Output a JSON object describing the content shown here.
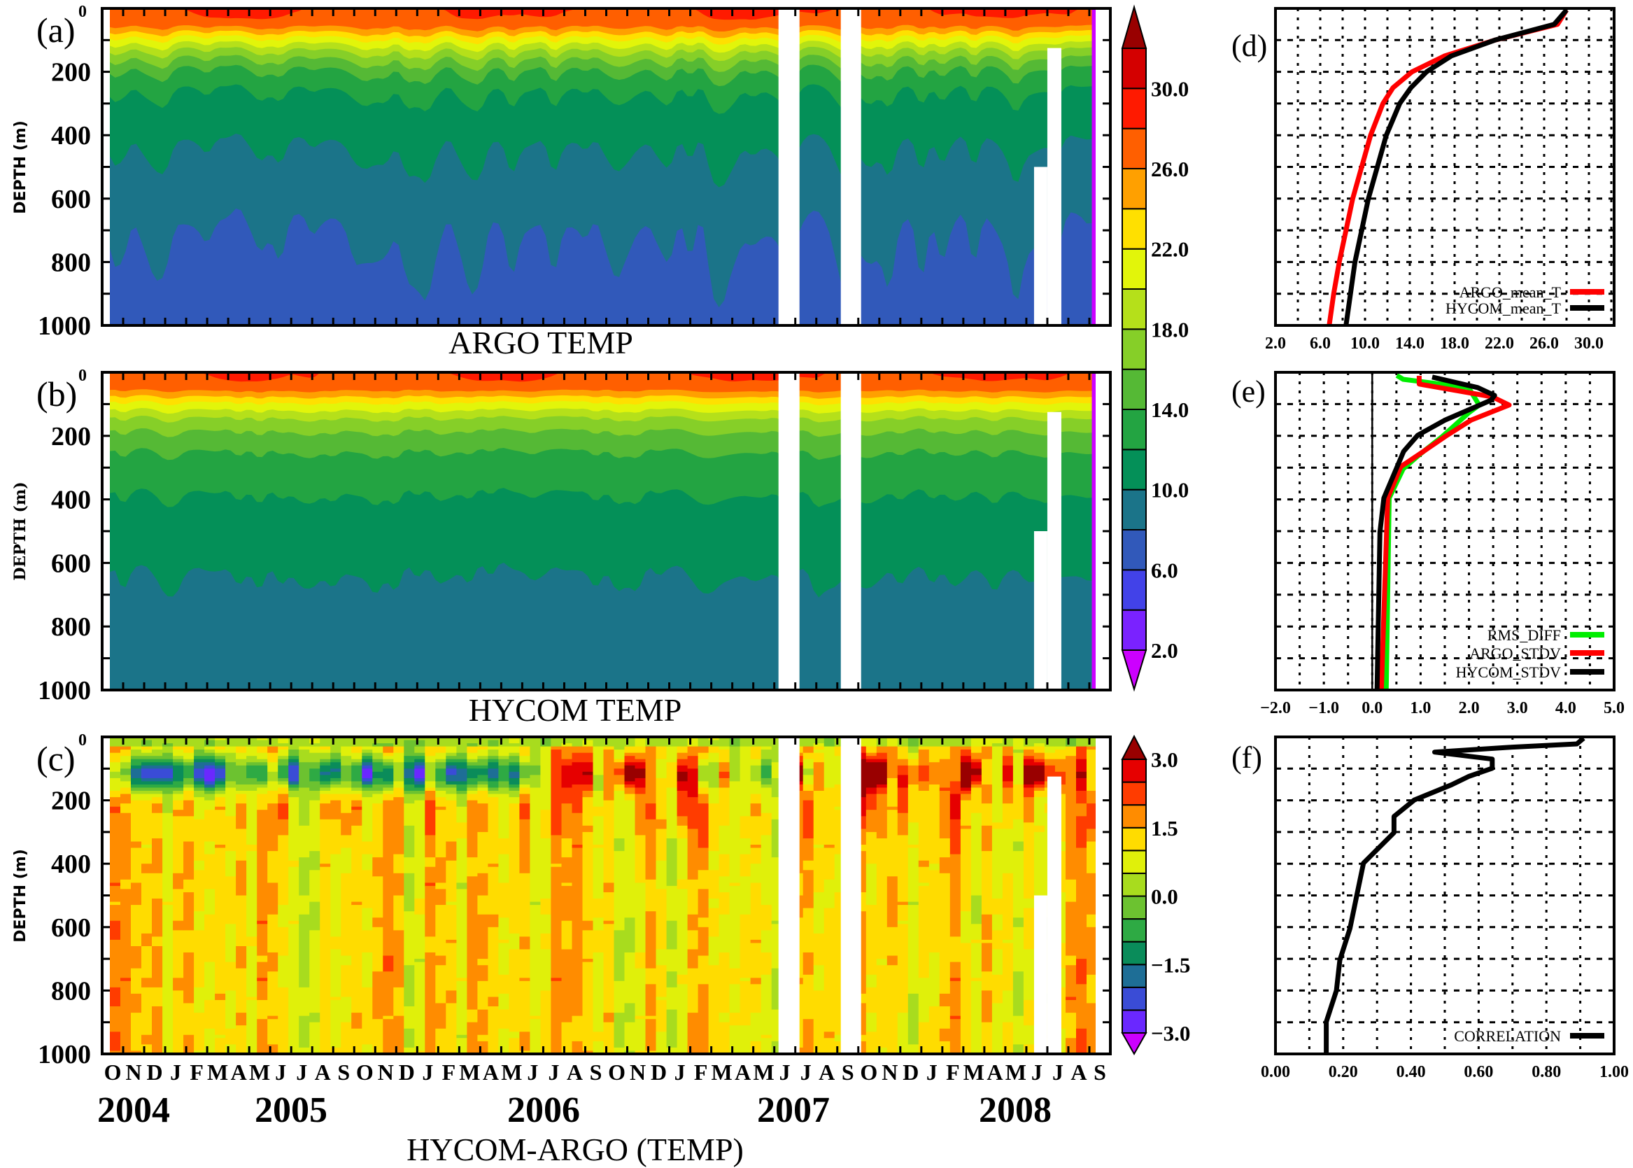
{
  "panel_labels": [
    "(a)",
    "(b)",
    "(c)",
    "(d)",
    "(e)",
    "(f)"
  ],
  "months": [
    "O",
    "N",
    "D",
    "J",
    "F",
    "M",
    "A",
    "M",
    "J",
    "J",
    "A",
    "S",
    "O",
    "N",
    "D",
    "J",
    "F",
    "M",
    "A",
    "M",
    "J",
    "J",
    "A",
    "S",
    "O",
    "N",
    "D",
    "J",
    "F",
    "M",
    "A",
    "M",
    "J",
    "J",
    "A",
    "S",
    "O",
    "N",
    "D",
    "J",
    "F",
    "M",
    "A",
    "M",
    "J",
    "J",
    "A",
    "S"
  ],
  "years": [
    "2004",
    "2005",
    "2006",
    "2007",
    "2008"
  ],
  "colorbars": [
    {
      "levels": [
        2,
        4,
        6,
        8,
        10,
        12,
        14,
        16,
        18,
        20,
        22,
        24,
        26,
        28,
        30,
        32
      ],
      "labels": [
        {
          "value": 2,
          "text": "2.0"
        },
        {
          "value": 6,
          "text": "6.0"
        },
        {
          "value": 10,
          "text": "10.0"
        },
        {
          "value": 14,
          "text": "14.0"
        },
        {
          "value": 18,
          "text": "18.0"
        },
        {
          "value": 22,
          "text": "22.0"
        },
        {
          "value": 26,
          "text": "26.0"
        },
        {
          "value": 30,
          "text": "30.0"
        }
      ],
      "colors_low_to_high": [
        "#cc00ff",
        "#7a22ff",
        "#4242e8",
        "#3159ba",
        "#1b7489",
        "#049058",
        "#23a442",
        "#55b935",
        "#86cf28",
        "#b5e01a",
        "#e2f50a",
        "#ffe000",
        "#ffa000",
        "#ff5f00",
        "#ff1a00",
        "#d40000",
        "#990000"
      ]
    },
    {
      "levels": [
        -3,
        -2.5,
        -2,
        -1.5,
        -1,
        -0.5,
        0,
        0.5,
        1,
        1.5,
        2,
        2.5,
        3
      ],
      "labels": [
        {
          "value": -3,
          "text": "−3.0"
        },
        {
          "value": -1.5,
          "text": "−1.5"
        },
        {
          "value": 0,
          "text": "0.0"
        },
        {
          "value": 1.5,
          "text": "1.5"
        },
        {
          "value": 3,
          "text": "3.0"
        }
      ],
      "colors_low_to_high": [
        "#cc00ff",
        "#6a28ff",
        "#3a4cd6",
        "#1e6e96",
        "#0a8c5a",
        "#2eaa44",
        "#6cc230",
        "#a8dc1e",
        "#e0f00a",
        "#ffdc00",
        "#ff8c00",
        "#ff3c00",
        "#e60000",
        "#990000"
      ]
    }
  ],
  "chart_data": [
    {
      "panel": "(a)",
      "type": "heatmap",
      "title": "ARGO TEMP",
      "ylabel": "DEPTH (m)",
      "ylim": [
        1000,
        0
      ],
      "yticks": [
        "0",
        "200",
        "400",
        "600",
        "800",
        "1000"
      ],
      "xlim": [
        "2004-10-01",
        "2008-10-01"
      ],
      "data_range": [
        "2004-10-12",
        "2008-09-10"
      ],
      "colorbar": 0,
      "missing": [
        {
          "start": "2007-06-07",
          "end": "2007-07-07",
          "depth_from": 0
        },
        {
          "start": "2007-09-06",
          "end": "2007-10-05",
          "depth_from": 0
        },
        {
          "start": "2008-06-12",
          "end": "2008-07-01",
          "depth_from": 500
        },
        {
          "start": "2008-07-01",
          "end": "2008-07-21",
          "depth_from": 125
        }
      ]
    },
    {
      "panel": "(b)",
      "type": "heatmap",
      "title": "HYCOM TEMP",
      "ylabel": "DEPTH (m)",
      "ylim": [
        1000,
        0
      ],
      "yticks": [
        "0",
        "200",
        "400",
        "600",
        "800",
        "1000"
      ],
      "xlim": [
        "2004-10-01",
        "2008-10-01"
      ],
      "data_range": [
        "2004-10-12",
        "2008-09-10"
      ],
      "colorbar": 0,
      "missing": [
        {
          "start": "2007-06-07",
          "end": "2007-07-07",
          "depth_from": 0
        },
        {
          "start": "2007-09-06",
          "end": "2007-10-05",
          "depth_from": 0
        },
        {
          "start": "2008-06-12",
          "end": "2008-07-01",
          "depth_from": 500
        },
        {
          "start": "2008-07-01",
          "end": "2008-07-21",
          "depth_from": 125
        }
      ]
    },
    {
      "panel": "(c)",
      "type": "heatmap",
      "title": "HYCOM-ARGO (TEMP)",
      "ylabel": "DEPTH (m)",
      "ylim": [
        1000,
        0
      ],
      "yticks": [
        "0",
        "200",
        "400",
        "600",
        "800",
        "1000"
      ],
      "xlim": [
        "2004-10-01",
        "2008-10-01"
      ],
      "data_range": [
        "2004-10-12",
        "2008-09-10"
      ],
      "colorbar": 1,
      "missing": [
        {
          "start": "2007-06-07",
          "end": "2007-07-07",
          "depth_from": 0
        },
        {
          "start": "2007-09-06",
          "end": "2007-10-05",
          "depth_from": 0
        },
        {
          "start": "2008-06-12",
          "end": "2008-07-01",
          "depth_from": 500
        },
        {
          "start": "2008-07-01",
          "end": "2008-07-21",
          "depth_from": 125
        }
      ]
    },
    {
      "panel": "(d)",
      "type": "line",
      "xlim": [
        2,
        32.25
      ],
      "ylim": [
        1000,
        0
      ],
      "xticks": [
        "2.0",
        "6.0",
        "10.0",
        "14.0",
        "18.0",
        "22.0",
        "26.0",
        "30.0"
      ],
      "xtick_values": [
        2,
        6,
        10,
        14,
        18,
        22,
        26,
        30
      ],
      "grid": true,
      "grid_x_step": 2,
      "grid_y_step": 100,
      "legend": "bottom-right",
      "series": [
        {
          "name": "ARGO_mean_T",
          "color": "#ff0000",
          "points": [
            [
              28.0,
              5
            ],
            [
              27.2,
              50
            ],
            [
              21.6,
              100
            ],
            [
              17.1,
              150
            ],
            [
              14.2,
              200
            ],
            [
              12.5,
              250
            ],
            [
              11.6,
              300
            ],
            [
              10.5,
              400
            ],
            [
              9.7,
              500
            ],
            [
              8.9,
              600
            ],
            [
              8.3,
              700
            ],
            [
              7.7,
              800
            ],
            [
              7.2,
              900
            ],
            [
              6.8,
              1000
            ]
          ]
        },
        {
          "name": "HYCOM_mean_T",
          "color": "#000000",
          "points": [
            [
              28.0,
              5
            ],
            [
              26.9,
              50
            ],
            [
              21.6,
              100
            ],
            [
              17.7,
              150
            ],
            [
              15.5,
              200
            ],
            [
              14.1,
              250
            ],
            [
              13.1,
              300
            ],
            [
              11.9,
              400
            ],
            [
              11.1,
              500
            ],
            [
              10.3,
              600
            ],
            [
              9.7,
              700
            ],
            [
              9.1,
              800
            ],
            [
              8.7,
              900
            ],
            [
              8.3,
              1000
            ]
          ]
        }
      ]
    },
    {
      "panel": "(e)",
      "type": "line",
      "xlim": [
        -2,
        5
      ],
      "ylim": [
        1000,
        0
      ],
      "xticks": [
        "−2.0",
        "−1.0",
        "0.0",
        "1.0",
        "2.0",
        "3.0",
        "4.0",
        "5.0"
      ],
      "xtick_values": [
        -2,
        -1,
        0,
        1,
        2,
        3,
        4,
        5
      ],
      "grid": true,
      "grid_x_step": 0.5,
      "grid_y_step": 100,
      "zero_line": true,
      "legend": "bottom-right",
      "series": [
        {
          "name": "RMS_DIFF",
          "color": "#00ee00",
          "points": [
            [
              0.51,
              10
            ],
            [
              0.64,
              22
            ],
            [
              1.99,
              48
            ],
            [
              2.21,
              103
            ],
            [
              1.99,
              128
            ],
            [
              1.45,
              202
            ],
            [
              0.97,
              260
            ],
            [
              0.64,
              304
            ],
            [
              0.35,
              396
            ],
            [
              0.29,
              998
            ]
          ]
        },
        {
          "name": "ARGO_STDV",
          "color": "#ff0000",
          "points": [
            [
              0.97,
              11
            ],
            [
              0.97,
              37
            ],
            [
              2.48,
              77
            ],
            [
              2.83,
              103
            ],
            [
              2.05,
              150
            ],
            [
              1.51,
              202
            ],
            [
              1.02,
              253
            ],
            [
              0.59,
              297
            ],
            [
              0.32,
              396
            ],
            [
              0.19,
              998
            ]
          ]
        },
        {
          "name": "HYCOM_STDV",
          "color": "#000000",
          "points": [
            [
              1.24,
              15
            ],
            [
              2.18,
              48
            ],
            [
              2.53,
              73
            ],
            [
              2.45,
              88
            ],
            [
              1.51,
              150
            ],
            [
              0.94,
              198
            ],
            [
              0.65,
              249
            ],
            [
              0.24,
              396
            ],
            [
              0.16,
              503
            ],
            [
              0.1,
              998
            ]
          ]
        }
      ]
    },
    {
      "panel": "(f)",
      "type": "line",
      "xlim": [
        0,
        1
      ],
      "ylim": [
        1000,
        0
      ],
      "xticks": [
        "0.00",
        "0.20",
        "0.40",
        "0.60",
        "0.80",
        "1.00"
      ],
      "xtick_values": [
        0,
        0.2,
        0.4,
        0.6,
        0.8,
        1.0
      ],
      "grid": true,
      "grid_x_step": 0.1,
      "grid_y_step": 100,
      "legend": "bottom-right",
      "series": [
        {
          "name": "CORRELATION",
          "color": "#000000",
          "points": [
            [
              0.91,
              4
            ],
            [
              0.89,
              22
            ],
            [
              0.69,
              33
            ],
            [
              0.47,
              48
            ],
            [
              0.64,
              70
            ],
            [
              0.64,
              99
            ],
            [
              0.57,
              125
            ],
            [
              0.52,
              151
            ],
            [
              0.41,
              199
            ],
            [
              0.35,
              251
            ],
            [
              0.35,
              302
            ],
            [
              0.26,
              398
            ],
            [
              0.24,
              500
            ],
            [
              0.22,
              604
            ],
            [
              0.19,
              704
            ],
            [
              0.18,
              800
            ],
            [
              0.15,
              899
            ],
            [
              0.15,
              999
            ]
          ]
        }
      ]
    }
  ]
}
